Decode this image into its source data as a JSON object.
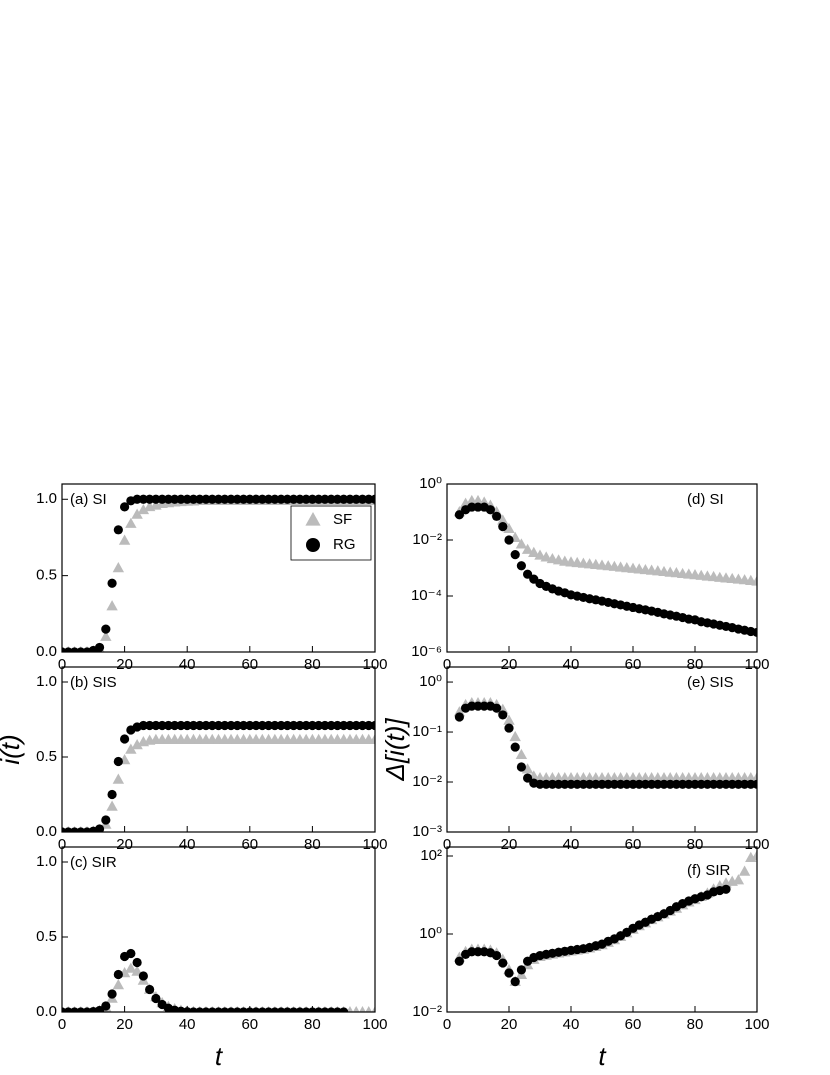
{
  "chart_data": [
    {
      "type": "scatter",
      "label": "(a) SI",
      "legend": "upper right",
      "xlim": [
        0,
        100
      ],
      "xticks": [
        0,
        20,
        40,
        60,
        80,
        100
      ],
      "ylim": [
        0,
        1.1
      ],
      "yticks": [
        {
          "value": 0,
          "label": "0.0"
        },
        {
          "value": 0.5,
          "label": "0.5"
        },
        {
          "value": 1,
          "label": "1.0"
        }
      ],
      "x": [
        0,
        2,
        4,
        6,
        8,
        10,
        12,
        14,
        16,
        18,
        20,
        22,
        24,
        26,
        28,
        30,
        32,
        34,
        36,
        38,
        40,
        42,
        44,
        46,
        48,
        50,
        52,
        54,
        56,
        58,
        60,
        62,
        64,
        66,
        68,
        70,
        72,
        74,
        76,
        78,
        80,
        82,
        84,
        86,
        88,
        90,
        92,
        94,
        96,
        98,
        100
      ],
      "series": [
        {
          "name": "SF",
          "color": "#bbbbbb",
          "marker": "triangle",
          "values": [
            0,
            0,
            0,
            0,
            0,
            0.005,
            0.02,
            0.1,
            0.3,
            0.55,
            0.73,
            0.84,
            0.9,
            0.93,
            0.95,
            0.96,
            0.97,
            0.975,
            0.98,
            0.983,
            0.985,
            0.987,
            0.99,
            0.99,
            0.99,
            0.99,
            0.99,
            0.99,
            0.99,
            0.99,
            0.99,
            0.99,
            0.99,
            0.99,
            0.99,
            0.99,
            0.99,
            0.99,
            0.99,
            0.99,
            0.99,
            0.99,
            0.99,
            0.99,
            0.99,
            0.99,
            0.99,
            0.99,
            0.99,
            0.99,
            0.99
          ]
        },
        {
          "name": "RG",
          "color": "#000000",
          "marker": "circle",
          "values": [
            0,
            0,
            0,
            0,
            0,
            0.01,
            0.03,
            0.15,
            0.45,
            0.8,
            0.95,
            0.99,
            1,
            1,
            1,
            1,
            1,
            1,
            1,
            1,
            1,
            1,
            1,
            1,
            1,
            1,
            1,
            1,
            1,
            1,
            1,
            1,
            1,
            1,
            1,
            1,
            1,
            1,
            1,
            1,
            1,
            1,
            1,
            1,
            1,
            1,
            1,
            1,
            1,
            1,
            1
          ]
        }
      ]
    },
    {
      "type": "scatter",
      "label": "(b) SIS",
      "ylabel": "i(t)",
      "xlim": [
        0,
        100
      ],
      "xticks": [
        0,
        20,
        40,
        60,
        80,
        100
      ],
      "ylim": [
        0,
        1.1
      ],
      "yticks": [
        {
          "value": 0,
          "label": "0.0"
        },
        {
          "value": 0.5,
          "label": "0.5"
        },
        {
          "value": 1,
          "label": "1.0"
        }
      ],
      "x": [
        0,
        2,
        4,
        6,
        8,
        10,
        12,
        14,
        16,
        18,
        20,
        22,
        24,
        26,
        28,
        30,
        32,
        34,
        36,
        38,
        40,
        42,
        44,
        46,
        48,
        50,
        52,
        54,
        56,
        58,
        60,
        62,
        64,
        66,
        68,
        70,
        72,
        74,
        76,
        78,
        80,
        82,
        84,
        86,
        88,
        90,
        92,
        94,
        96,
        98,
        100
      ],
      "series": [
        {
          "color": "#bbbbbb",
          "marker": "triangle",
          "values": [
            0,
            0,
            0,
            0,
            0,
            0.003,
            0.01,
            0.05,
            0.17,
            0.35,
            0.48,
            0.55,
            0.58,
            0.6,
            0.61,
            0.615,
            0.615,
            0.615,
            0.615,
            0.615,
            0.615,
            0.615,
            0.615,
            0.615,
            0.615,
            0.615,
            0.615,
            0.615,
            0.615,
            0.615,
            0.615,
            0.615,
            0.615,
            0.615,
            0.615,
            0.615,
            0.615,
            0.615,
            0.615,
            0.615,
            0.615,
            0.615,
            0.615,
            0.615,
            0.615,
            0.615,
            0.615,
            0.615,
            0.615,
            0.615,
            0.615
          ]
        },
        {
          "color": "#000000",
          "marker": "circle",
          "values": [
            0,
            0,
            0,
            0,
            0,
            0.005,
            0.02,
            0.08,
            0.25,
            0.47,
            0.62,
            0.68,
            0.7,
            0.71,
            0.71,
            0.71,
            0.71,
            0.71,
            0.71,
            0.71,
            0.71,
            0.71,
            0.71,
            0.71,
            0.71,
            0.71,
            0.71,
            0.71,
            0.71,
            0.71,
            0.71,
            0.71,
            0.71,
            0.71,
            0.71,
            0.71,
            0.71,
            0.71,
            0.71,
            0.71,
            0.71,
            0.71,
            0.71,
            0.71,
            0.71,
            0.71,
            0.71,
            0.71,
            0.71,
            0.71,
            0.71
          ]
        }
      ]
    },
    {
      "type": "scatter",
      "label": "(c) SIR",
      "xlabel": "t",
      "xlim": [
        0,
        100
      ],
      "xticks": [
        0,
        20,
        40,
        60,
        80,
        100
      ],
      "ylim": [
        0,
        1.1
      ],
      "yticks": [
        {
          "value": 0,
          "label": "0.0"
        },
        {
          "value": 0.5,
          "label": "0.5"
        },
        {
          "value": 1,
          "label": "1.0"
        }
      ],
      "x": [
        0,
        2,
        4,
        6,
        8,
        10,
        12,
        14,
        16,
        18,
        20,
        22,
        24,
        26,
        28,
        30,
        32,
        34,
        36,
        38,
        40,
        42,
        44,
        46,
        48,
        50,
        52,
        54,
        56,
        58,
        60,
        62,
        64,
        66,
        68,
        70,
        72,
        74,
        76,
        78,
        80,
        82,
        84,
        86,
        88,
        90,
        92,
        94,
        96,
        98,
        100
      ],
      "series": [
        {
          "color": "#bbbbbb",
          "marker": "triangle",
          "values": [
            0,
            0,
            0,
            0,
            0,
            0.002,
            0.008,
            0.03,
            0.09,
            0.18,
            0.26,
            0.29,
            0.27,
            0.21,
            0.15,
            0.1,
            0.06,
            0.035,
            0.02,
            0.01,
            0.005,
            0.002,
            0,
            0,
            0,
            0,
            0,
            0,
            0,
            0,
            0,
            0,
            0,
            0,
            0,
            0,
            0,
            0,
            0,
            0,
            0,
            0,
            0,
            0,
            0,
            0,
            0,
            0,
            0,
            0,
            0
          ]
        },
        {
          "color": "#000000",
          "marker": "circle",
          "values": [
            0,
            0,
            0,
            0,
            0,
            0.003,
            0.01,
            0.04,
            0.12,
            0.25,
            0.37,
            0.39,
            0.33,
            0.24,
            0.15,
            0.09,
            0.05,
            0.025,
            0.012,
            0.005,
            0.002,
            0,
            0,
            0,
            0,
            0,
            0,
            0,
            0,
            0,
            0,
            0,
            0,
            0,
            0,
            0,
            0,
            0,
            0,
            0,
            0,
            0,
            0,
            0,
            0,
            0,
            null,
            null,
            null,
            null,
            null
          ]
        }
      ]
    },
    {
      "type": "scatter",
      "label": "(d) SI",
      "yscale": "log",
      "xlim": [
        0,
        100
      ],
      "xticks": [
        0,
        20,
        40,
        60,
        80,
        100
      ],
      "ylim": [
        1e-06,
        1
      ],
      "yticks": [
        {
          "value": 1e-06,
          "label": "10⁻⁶"
        },
        {
          "value": 0.0001,
          "label": "10⁻⁴"
        },
        {
          "value": 0.01,
          "label": "10⁻²"
        },
        {
          "value": 1,
          "label": "10⁰"
        }
      ],
      "x": [
        4,
        6,
        8,
        10,
        12,
        14,
        16,
        18,
        20,
        22,
        24,
        26,
        28,
        30,
        32,
        34,
        36,
        38,
        40,
        42,
        44,
        46,
        48,
        50,
        52,
        54,
        56,
        58,
        60,
        62,
        64,
        66,
        68,
        70,
        72,
        74,
        76,
        78,
        80,
        82,
        84,
        86,
        88,
        90,
        92,
        94,
        96,
        98,
        100
      ],
      "series": [
        {
          "color": "#bbbbbb",
          "marker": "triangle",
          "values": [
            0.1,
            0.2,
            0.25,
            0.25,
            0.22,
            0.17,
            0.1,
            0.05,
            0.025,
            0.012,
            0.007,
            0.0045,
            0.0035,
            0.0028,
            0.0024,
            0.0021,
            0.0019,
            0.0017,
            0.0016,
            0.00152,
            0.00144,
            0.00137,
            0.0013,
            0.00123,
            0.00117,
            0.00111,
            0.00105,
            0.001,
            0.00095,
            0.0009,
            0.00085,
            0.00081,
            0.00077,
            0.00073,
            0.00069,
            0.00066,
            0.00062,
            0.00059,
            0.00056,
            0.00053,
            0.0005,
            0.00048,
            0.00045,
            0.00043,
            0.00041,
            0.00039,
            0.00037,
            0.00035,
            0.00033
          ]
        },
        {
          "color": "#000000",
          "marker": "circle",
          "values": [
            0.08,
            0.12,
            0.15,
            0.15,
            0.15,
            0.12,
            0.07,
            0.03,
            0.01,
            0.003,
            0.0012,
            0.0006,
            0.0004,
            0.00028,
            0.00022,
            0.00018,
            0.00015,
            0.00013,
            0.00011,
            9.9e-05,
            8.9e-05,
            8e-05,
            7.3e-05,
            6.6e-05,
            5.9e-05,
            5.3e-05,
            4.8e-05,
            4.3e-05,
            3.9e-05,
            3.5e-05,
            3.2e-05,
            2.9e-05,
            2.6e-05,
            2.3e-05,
            2.1e-05,
            1.9e-05,
            1.7e-05,
            1.5e-05,
            1.4e-05,
            1.2e-05,
            1.1e-05,
            1e-05,
            9e-06,
            8.2e-06,
            7.4e-06,
            6.6e-06,
            6e-06,
            5.4e-06,
            5e-06
          ]
        }
      ]
    },
    {
      "type": "scatter",
      "label": "(e) SIS",
      "ylabel": "Δ[i(t)]",
      "yscale": "log",
      "xlim": [
        0,
        100
      ],
      "xticks": [
        0,
        20,
        40,
        60,
        80,
        100
      ],
      "ylim": [
        0.001,
        2
      ],
      "yticks": [
        {
          "value": 0.001,
          "label": "10⁻³"
        },
        {
          "value": 0.01,
          "label": "10⁻²"
        },
        {
          "value": 0.1,
          "label": "10⁻¹"
        },
        {
          "value": 1,
          "label": "10⁰"
        }
      ],
      "x": [
        4,
        6,
        8,
        10,
        12,
        14,
        16,
        18,
        20,
        22,
        24,
        26,
        28,
        30,
        32,
        34,
        36,
        38,
        40,
        42,
        44,
        46,
        48,
        50,
        52,
        54,
        56,
        58,
        60,
        62,
        64,
        66,
        68,
        70,
        72,
        74,
        76,
        78,
        80,
        82,
        84,
        86,
        88,
        90,
        92,
        94,
        96,
        98,
        100
      ],
      "series": [
        {
          "color": "#bbbbbb",
          "marker": "triangle",
          "values": [
            0.25,
            0.35,
            0.38,
            0.38,
            0.38,
            0.38,
            0.35,
            0.28,
            0.17,
            0.08,
            0.035,
            0.018,
            0.013,
            0.012,
            0.012,
            0.012,
            0.012,
            0.012,
            0.012,
            0.012,
            0.012,
            0.012,
            0.012,
            0.012,
            0.012,
            0.012,
            0.012,
            0.012,
            0.012,
            0.012,
            0.012,
            0.012,
            0.012,
            0.012,
            0.012,
            0.012,
            0.012,
            0.012,
            0.012,
            0.012,
            0.012,
            0.012,
            0.012,
            0.012,
            0.012,
            0.012,
            0.012,
            0.012,
            0.012
          ]
        },
        {
          "color": "#000000",
          "marker": "circle",
          "values": [
            0.2,
            0.3,
            0.33,
            0.33,
            0.33,
            0.33,
            0.3,
            0.22,
            0.12,
            0.05,
            0.02,
            0.012,
            0.0095,
            0.009,
            0.009,
            0.009,
            0.009,
            0.009,
            0.009,
            0.009,
            0.009,
            0.009,
            0.009,
            0.009,
            0.009,
            0.009,
            0.009,
            0.009,
            0.009,
            0.009,
            0.009,
            0.009,
            0.009,
            0.009,
            0.009,
            0.009,
            0.009,
            0.009,
            0.009,
            0.009,
            0.009,
            0.009,
            0.009,
            0.009,
            0.009,
            0.009,
            0.009,
            0.009,
            0.009
          ]
        }
      ]
    },
    {
      "type": "scatter",
      "label": "(f) SIR",
      "xlabel": "t",
      "yscale": "log",
      "xlim": [
        0,
        100
      ],
      "xticks": [
        0,
        20,
        40,
        60,
        80,
        100
      ],
      "ylim": [
        0.01,
        170
      ],
      "yticks": [
        {
          "value": 0.01,
          "label": "10⁻²"
        },
        {
          "value": 1,
          "label": "10⁰"
        },
        {
          "value": 100,
          "label": "10²"
        }
      ],
      "x": [
        4,
        6,
        8,
        10,
        12,
        14,
        16,
        18,
        20,
        22,
        24,
        26,
        28,
        30,
        32,
        34,
        36,
        38,
        40,
        42,
        44,
        46,
        48,
        50,
        52,
        54,
        56,
        58,
        60,
        62,
        64,
        66,
        68,
        70,
        72,
        74,
        76,
        78,
        80,
        82,
        84,
        86,
        88,
        90,
        92,
        94,
        96,
        98,
        100
      ],
      "series": [
        {
          "color": "#bbbbbb",
          "marker": "triangle",
          "values": [
            0.25,
            0.35,
            0.4,
            0.4,
            0.4,
            0.38,
            0.32,
            0.22,
            0.12,
            0.06,
            0.09,
            0.16,
            0.22,
            0.26,
            0.28,
            0.3,
            0.32,
            0.34,
            0.36,
            0.38,
            0.4,
            0.43,
            0.47,
            0.52,
            0.6,
            0.7,
            0.85,
            1.05,
            1.3,
            1.6,
            1.9,
            2.3,
            2.7,
            3.2,
            3.8,
            4.5,
            5.5,
            6.5,
            7.5,
            9,
            11,
            14,
            17,
            20,
            22,
            24,
            40,
            90,
            100
          ]
        },
        {
          "color": "#000000",
          "marker": "circle",
          "values": [
            0.2,
            0.3,
            0.35,
            0.35,
            0.35,
            0.33,
            0.28,
            0.18,
            0.1,
            0.06,
            0.12,
            0.2,
            0.25,
            0.28,
            0.3,
            0.32,
            0.34,
            0.36,
            0.38,
            0.4,
            0.42,
            0.45,
            0.5,
            0.55,
            0.65,
            0.75,
            0.9,
            1.1,
            1.4,
            1.7,
            2,
            2.4,
            2.8,
            3.3,
            4,
            5,
            6,
            7,
            8,
            9,
            10,
            12,
            13,
            14,
            null,
            null,
            null,
            null,
            null
          ]
        }
      ]
    }
  ]
}
